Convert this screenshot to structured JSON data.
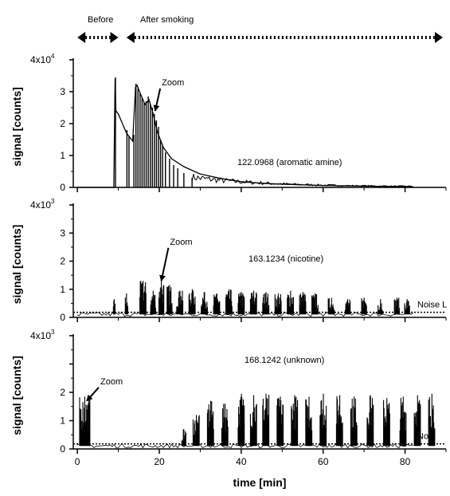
{
  "chart_data": {
    "type": "line",
    "xlabel": "time [min]",
    "x_ticks": [
      "0",
      "20",
      "40",
      "60",
      "80"
    ],
    "xlim": [
      -1,
      90
    ],
    "phases": [
      {
        "label": "Before",
        "start": 0,
        "end": 10
      },
      {
        "label": "After smoking",
        "start": 12,
        "end": 90
      }
    ],
    "panels": [
      {
        "name": "122.0968 (aromatic amine)",
        "ylabel": "signal [counts]",
        "ylim": [
          0,
          40000
        ],
        "y_ticks": [
          "0",
          "1",
          "2",
          "3"
        ],
        "y_top_label": "4x10",
        "y_exp": "4",
        "noise_level": null,
        "noise_label": "",
        "annotation": {
          "text": "Zoom",
          "x": 21,
          "y": 33000,
          "target_x": 19,
          "target_y": 24000
        },
        "series": [
          {
            "kind": "decay",
            "x": [
              0,
              8.9,
              9.2,
              9.4,
              10,
              11,
              12,
              13.5,
              14.2,
              14.6,
              15.5,
              16.5,
              17.5,
              18.5,
              19.5,
              21,
              23,
              26,
              30,
              35,
              40,
              45,
              50,
              55,
              60,
              65,
              70,
              75,
              82
            ],
            "y": [
              0,
              0,
              34000,
              24000,
              23000,
              20000,
              17000,
              14500,
              31500,
              32000,
              29000,
              26000,
              27500,
              23000,
              17500,
              12500,
              9000,
              6500,
              4200,
              2800,
              1800,
              1300,
              1000,
              800,
              600,
              500,
              400,
              300,
              200
            ]
          },
          {
            "kind": "spikes",
            "x": [
              9.3,
              12.1,
              12.6,
              13.8,
              14.3,
              14.8,
              15.3,
              15.8,
              16.3,
              16.8,
              17.3,
              17.8,
              18.3,
              18.8,
              19.3,
              19.8,
              20.3,
              20.8,
              21.5,
              22.5,
              23.5,
              24.5,
              26,
              28
            ],
            "y": [
              34500,
              18000,
              16000,
              16500,
              32500,
              31000,
              29500,
              28000,
              26500,
              27000,
              28500,
              26000,
              25000,
              23000,
              21000,
              19000,
              15000,
              13000,
              11000,
              9000,
              7000,
              6000,
              4500,
              3000
            ]
          }
        ]
      },
      {
        "name": "163.1234 (nicotine)",
        "ylabel": "signal [counts]",
        "ylim": [
          0,
          4000
        ],
        "y_ticks": [
          "0",
          "1",
          "2",
          "3"
        ],
        "y_top_label": "4x10",
        "y_exp": "3",
        "noise_level": 180,
        "noise_label": "Noise L",
        "annotation": {
          "text": "Zoom",
          "x": 23,
          "y": 2700,
          "target_x": 20.5,
          "target_y": 1300
        },
        "series": [
          {
            "kind": "bursts",
            "bursts": [
              [
                9,
                0.4,
                650
              ],
              [
                12,
                0.6,
                850
              ],
              [
                16,
                1.5,
                1300
              ],
              [
                18.5,
                1.2,
                950
              ],
              [
                20.5,
                1.2,
                1300
              ],
              [
                22.5,
                1.2,
                1150
              ],
              [
                25,
                1.5,
                950
              ],
              [
                28,
                1.5,
                1000
              ],
              [
                31,
                1.5,
                900
              ],
              [
                34,
                1.5,
                850
              ],
              [
                37,
                1.5,
                1000
              ],
              [
                40,
                1.5,
                900
              ],
              [
                43,
                1.5,
                950
              ],
              [
                46,
                1.5,
                900
              ],
              [
                49,
                1.5,
                850
              ],
              [
                52,
                1.5,
                950
              ],
              [
                55,
                1.5,
                900
              ],
              [
                58,
                1.5,
                850
              ],
              [
                62,
                1.5,
                700
              ],
              [
                66,
                1.2,
                650
              ],
              [
                70,
                1.2,
                700
              ],
              [
                74,
                1.2,
                650
              ],
              [
                78,
                1.2,
                700
              ],
              [
                80.5,
                1.2,
                650
              ]
            ]
          }
        ]
      },
      {
        "name": "168.1242 (unknown)",
        "ylabel": "signal [counts]",
        "ylim": [
          0,
          4000
        ],
        "y_ticks": [
          "0",
          "1",
          "2"
        ],
        "y_top_label": "4x10",
        "y_exp": "3",
        "noise_level": 180,
        "noise_label": "No",
        "annotation": {
          "text": "Zoom",
          "x": 6,
          "y": 2400,
          "target_x": 2.3,
          "target_y": 1700
        },
        "series": [
          {
            "kind": "bursts",
            "bursts": [
              [
                1.8,
                2.5,
                1850
              ],
              [
                26,
                1.0,
                700
              ],
              [
                29,
                1.5,
                1200
              ],
              [
                32.5,
                1.5,
                1700
              ],
              [
                36,
                1.5,
                1600
              ],
              [
                40,
                1.5,
                1950
              ],
              [
                43,
                1.5,
                1900
              ],
              [
                46,
                1.5,
                1950
              ],
              [
                49.5,
                1.5,
                1850
              ],
              [
                53,
                1.5,
                1900
              ],
              [
                56.5,
                1.5,
                1850
              ],
              [
                60,
                1.5,
                1950
              ],
              [
                64,
                1.5,
                1900
              ],
              [
                67.5,
                1.5,
                1850
              ],
              [
                71.5,
                1.5,
                1900
              ],
              [
                75.5,
                1.5,
                1800
              ],
              [
                79.5,
                1.5,
                1850
              ],
              [
                83,
                1.5,
                1900
              ],
              [
                86.5,
                1.5,
                1950
              ]
            ]
          }
        ]
      }
    ]
  }
}
